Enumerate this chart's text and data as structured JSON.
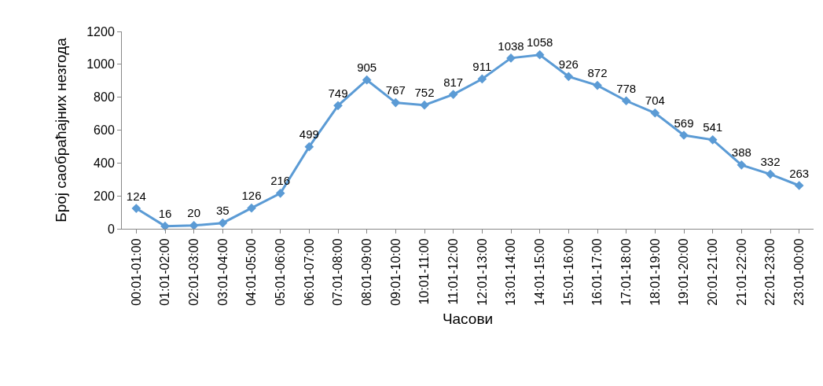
{
  "chart_data": {
    "type": "line",
    "xlabel": "Часови",
    "ylabel": "Број саобраћајних незгода",
    "categories": [
      "00:01-01:00",
      "01:01-02:00",
      "02:01-03:00",
      "03:01-04:00",
      "04:01-05:00",
      "05:01-06:00",
      "06:01-07:00",
      "07:01-08:00",
      "08:01-09:00",
      "09:01-10:00",
      "10:01-11:00",
      "11:01-12:00",
      "12:01-13:00",
      "13:01-14:00",
      "14:01-15:00",
      "15:01-16:00",
      "16:01-17:00",
      "17:01-18:00",
      "18:01-19:00",
      "19:01-20:00",
      "20:01-21:00",
      "21:01-22:00",
      "22:01-23:00",
      "23:01-00:00"
    ],
    "values": [
      124,
      16,
      20,
      35,
      126,
      216,
      499,
      749,
      905,
      767,
      752,
      817,
      911,
      1038,
      1058,
      926,
      872,
      778,
      704,
      569,
      541,
      388,
      332,
      263
    ],
    "color": "#5b9bd5",
    "marker": "diamond",
    "line_style": "solid",
    "data_labels": true,
    "grid": false,
    "ylim": [
      0,
      1200
    ],
    "yticks": [
      0,
      200,
      400,
      600,
      800,
      1000,
      1200
    ]
  }
}
